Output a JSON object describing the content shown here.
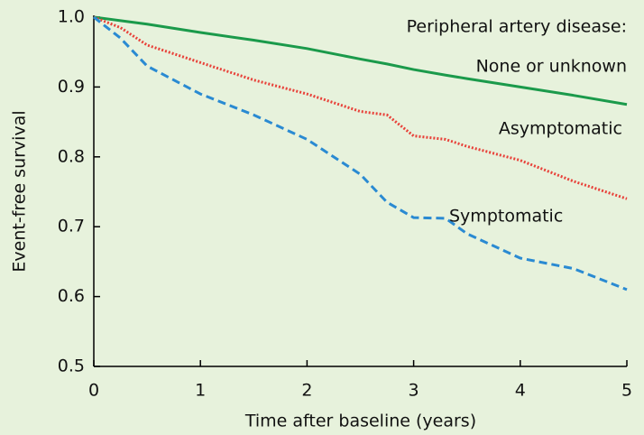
{
  "chart_data": {
    "type": "line",
    "annotation": "Peripheral artery disease:",
    "xlabel": "Time after baseline (years)",
    "ylabel": "Event-free survival",
    "x": [
      0,
      0.25,
      0.5,
      1,
      1.5,
      2,
      2.5,
      2.75,
      3,
      3.3,
      3.5,
      4,
      4.5,
      5
    ],
    "series": [
      {
        "name": "None or unknown",
        "color": "#1b9a4b",
        "style": "solid",
        "values": [
          1.0,
          0.995,
          0.99,
          0.978,
          0.967,
          0.955,
          0.94,
          0.933,
          0.925,
          0.917,
          0.912,
          0.9,
          0.888,
          0.875
        ]
      },
      {
        "name": "Asymptomatic",
        "color": "#e8423a",
        "style": "dotted",
        "values": [
          1.0,
          0.985,
          0.96,
          0.935,
          0.91,
          0.89,
          0.865,
          0.86,
          0.83,
          0.825,
          0.815,
          0.795,
          0.765,
          0.74
        ]
      },
      {
        "name": "Symptomatic",
        "color": "#2a8ad2",
        "style": "dashed",
        "values": [
          1.0,
          0.97,
          0.93,
          0.89,
          0.86,
          0.825,
          0.775,
          0.735,
          0.713,
          0.712,
          0.69,
          0.655,
          0.64,
          0.61
        ]
      }
    ],
    "xlim": [
      0,
      5
    ],
    "xticks": [
      0,
      1,
      2,
      3,
      4,
      5
    ],
    "ylim": [
      0.5,
      1.0
    ],
    "yticks": [
      0.5,
      0.6,
      0.7,
      0.8,
      0.9,
      {
        "value": 1.0,
        "label": "1.0"
      }
    ]
  }
}
